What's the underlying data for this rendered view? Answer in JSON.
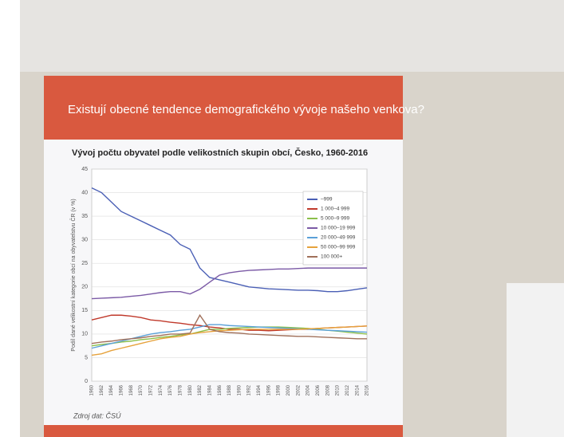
{
  "slide_title": "Existují obecné tendence demografického vývoje našeho venkova?",
  "chart_data": {
    "type": "line",
    "title": "Vývoj počtu obyvatel podle velikostních skupin obcí, Česko, 1960-2016",
    "y_label": "Podíl dané velikostní kategorie obcí na obyvatelstvu ČR (v %)",
    "source": "Zdroj dat: ČSÚ",
    "categories": [
      "1960",
      "1962",
      "1964",
      "1966",
      "1968",
      "1970",
      "1972",
      "1974",
      "1976",
      "1978",
      "1980",
      "1982",
      "1984",
      "1986",
      "1988",
      "1990",
      "1992",
      "1994",
      "1996",
      "1998",
      "2000",
      "2002",
      "2004",
      "2006",
      "2008",
      "2010",
      "2012",
      "2014",
      "2016"
    ],
    "ylim": [
      0,
      45
    ],
    "yticks": [
      0,
      5,
      10,
      15,
      20,
      25,
      30,
      35,
      40,
      45
    ],
    "grid": true,
    "legend": "right",
    "series": [
      {
        "name": "–999",
        "color": "#4a5fb5",
        "values": [
          41,
          40,
          38,
          36,
          35,
          34,
          33,
          32,
          31,
          29,
          28,
          24,
          22,
          21.5,
          21,
          20.5,
          20,
          19.8,
          19.6,
          19.5,
          19.4,
          19.3,
          19.3,
          19.2,
          19,
          19,
          19.2,
          19.5,
          19.8
        ]
      },
      {
        "name": "1 000–4 999",
        "color": "#c0392b",
        "values": [
          13,
          13.5,
          14,
          14,
          13.8,
          13.5,
          13,
          12.8,
          12.5,
          12.3,
          12,
          11.8,
          11.5,
          11.3,
          11,
          11,
          10.8,
          10.8,
          10.7,
          10.8,
          10.9,
          11,
          11,
          11.2,
          11.3,
          11.4,
          11.5,
          11.6,
          11.7
        ]
      },
      {
        "name": "5 000–9 999",
        "color": "#8bbf4a",
        "values": [
          7.5,
          7.8,
          8,
          8.3,
          8.5,
          8.8,
          9,
          9.3,
          9.5,
          9.8,
          10,
          10.5,
          11,
          11,
          11.2,
          11.3,
          11.4,
          11.5,
          11.5,
          11.5,
          11.4,
          11.3,
          11.2,
          11,
          10.8,
          10.6,
          10.4,
          10.2,
          10
        ]
      },
      {
        "name": "10 000–19 999",
        "color": "#7b5aa6",
        "values": [
          17.5,
          17.6,
          17.7,
          17.8,
          18,
          18.2,
          18.5,
          18.8,
          19,
          19,
          18.5,
          19.5,
          21,
          22.5,
          23,
          23.3,
          23.5,
          23.6,
          23.7,
          23.8,
          23.8,
          23.9,
          24,
          24,
          24,
          24,
          24,
          24,
          24
        ]
      },
      {
        "name": "20 000–49 999",
        "color": "#5aa0d8",
        "values": [
          7,
          7.5,
          8,
          8.5,
          9,
          9.5,
          10,
          10.3,
          10.5,
          10.8,
          11,
          11.5,
          12,
          12,
          11.8,
          11.7,
          11.6,
          11.5,
          11.4,
          11.3,
          11.2,
          11.1,
          11,
          10.9,
          10.8,
          10.7,
          10.6,
          10.5,
          10.4
        ]
      },
      {
        "name": "50 000–99 999",
        "color": "#e6a23c",
        "values": [
          5.5,
          5.8,
          6.5,
          7,
          7.5,
          8,
          8.5,
          9,
          9.3,
          9.5,
          10,
          10.3,
          10.5,
          10.7,
          10.8,
          10.9,
          11,
          11,
          11,
          11,
          11,
          11,
          11.1,
          11.2,
          11.3,
          11.4,
          11.5,
          11.6,
          11.7
        ]
      },
      {
        "name": "100 000+",
        "color": "#a0705a",
        "values": [
          8,
          8.3,
          8.5,
          8.8,
          9,
          9.2,
          9.5,
          9.7,
          10,
          10,
          10.2,
          14,
          11,
          10.5,
          10.3,
          10.2,
          10,
          9.9,
          9.8,
          9.7,
          9.6,
          9.5,
          9.5,
          9.4,
          9.3,
          9.2,
          9.1,
          9,
          9
        ]
      }
    ]
  }
}
